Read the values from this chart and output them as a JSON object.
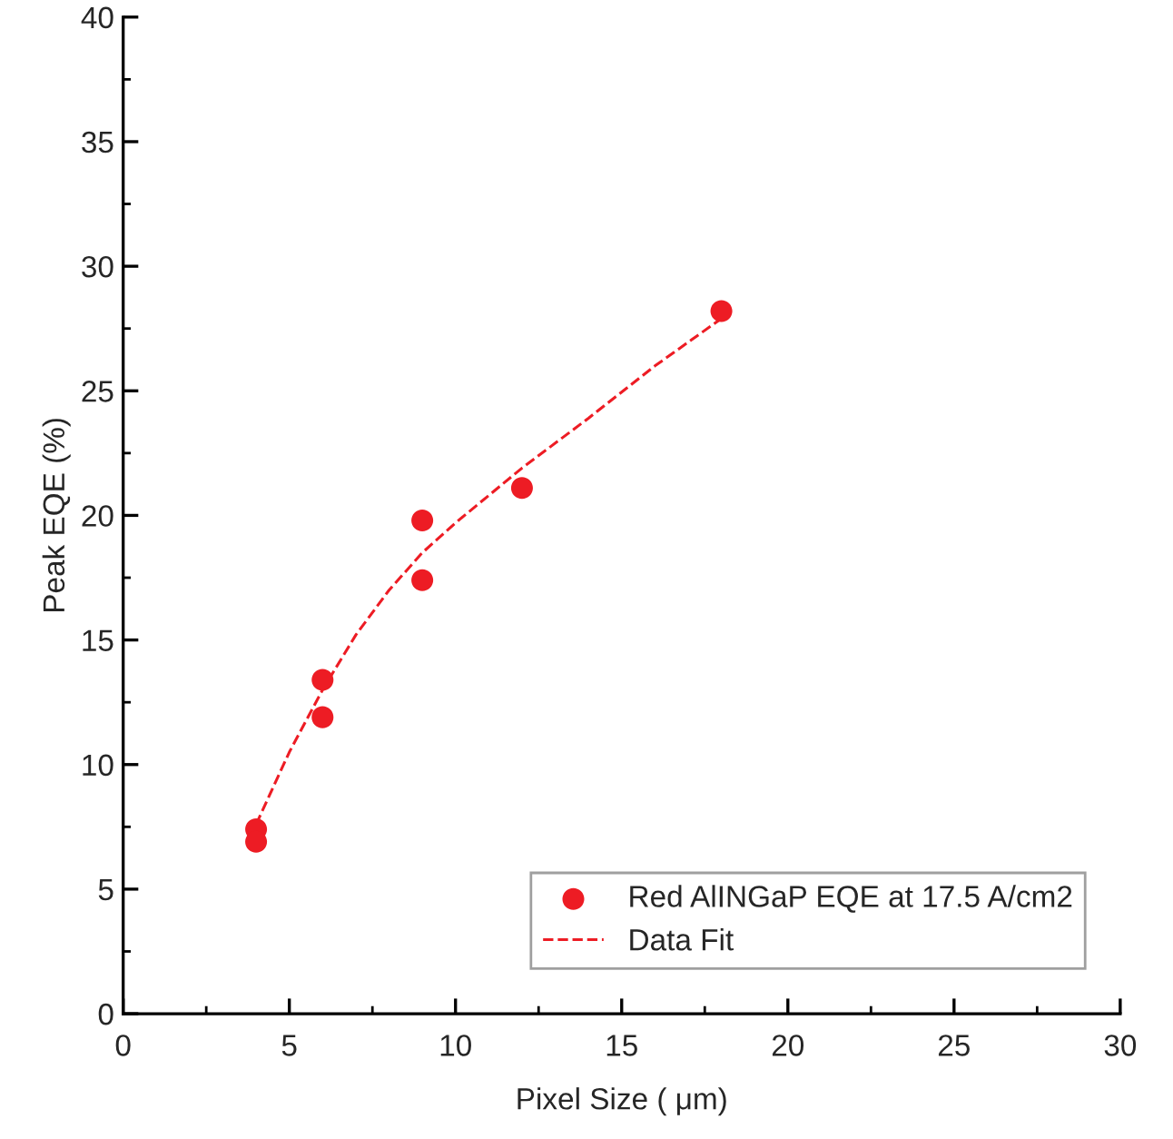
{
  "chart_data": {
    "type": "scatter",
    "xlabel": "Pixel Size ( μm)",
    "ylabel": "Peak EQE (%)",
    "xlim": [
      0,
      30
    ],
    "xticks": [
      0,
      5,
      10,
      15,
      20,
      25,
      30
    ],
    "ylim": [
      0,
      40
    ],
    "yticks": [
      0,
      5,
      10,
      15,
      20,
      25,
      30,
      35,
      40
    ],
    "grid": false,
    "legend": "bottom right",
    "series": [
      {
        "name": "Red AlINGaP EQE at 17.5 A/cm2",
        "color": "#ed1c24",
        "marker": "circle",
        "x": [
          4,
          4,
          6,
          6,
          9,
          9,
          12,
          18
        ],
        "values": [
          7.4,
          6.9,
          13.4,
          11.9,
          19.8,
          17.4,
          21.1,
          28.2
        ]
      },
      {
        "name": "Data Fit",
        "type": "line",
        "color": "#ed1c24",
        "line_style": "dashed",
        "marker": "none",
        "x": [
          4,
          5,
          6,
          7,
          8,
          9,
          10,
          12,
          14,
          16,
          18
        ],
        "values": [
          7.6,
          10.5,
          13,
          15.2,
          17,
          18.5,
          19.7,
          21.9,
          23.9,
          26,
          27.9
        ]
      }
    ]
  }
}
